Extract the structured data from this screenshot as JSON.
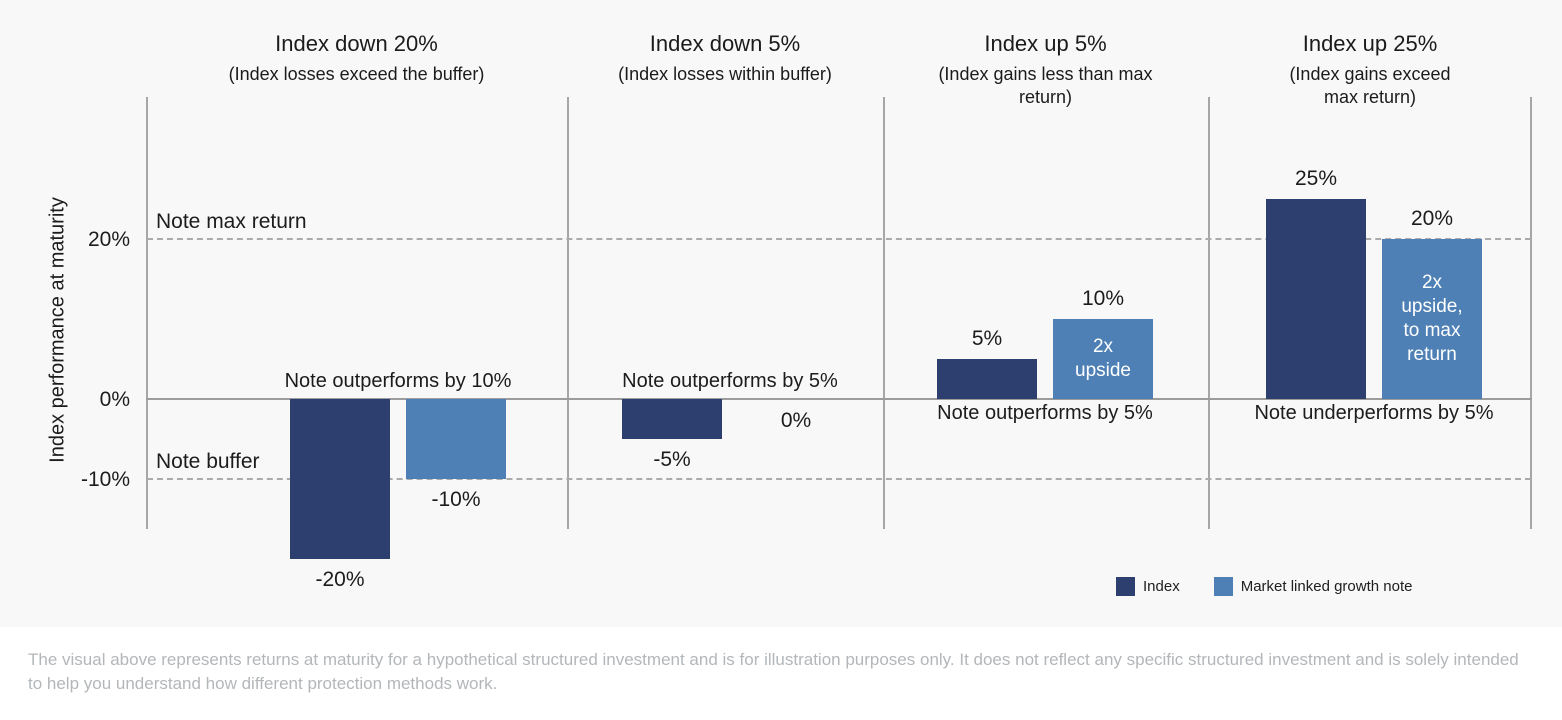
{
  "chart_data": {
    "type": "bar",
    "title": "",
    "y_axis": {
      "label": "Index performance at maturity",
      "ticks": [
        {
          "label": "20%",
          "value": 20
        },
        {
          "label": "0%",
          "value": 0
        },
        {
          "label": "-10%",
          "value": -10
        }
      ],
      "ylim": [
        -16,
        38
      ],
      "unit": "percent"
    },
    "reference_lines": [
      {
        "label": "Note max return",
        "value": 20,
        "style": "dashed"
      },
      {
        "label": "Note buffer",
        "value": -10,
        "style": "dashed"
      }
    ],
    "series_colors": {
      "index": "#2d3f6e",
      "note": "#4e80b5"
    },
    "legend": [
      {
        "label": "Index",
        "series": "index"
      },
      {
        "label": "Market linked growth note",
        "series": "note"
      }
    ],
    "legend_position": "bottom-right",
    "panels": [
      {
        "title": "Index down 20%",
        "subtitle": "(Index losses exceed the buffer)",
        "annotation": "Note outperforms by 10%",
        "index": {
          "value": -20,
          "label": "-20%"
        },
        "note": {
          "value": -10,
          "label": "-10%",
          "bar_lines": []
        }
      },
      {
        "title": "Index down 5%",
        "subtitle": "(Index losses within buffer)",
        "annotation": "Note outperforms by 5%",
        "index": {
          "value": -5,
          "label": "-5%"
        },
        "note": {
          "value": 0,
          "label": "0%",
          "bar_lines": []
        }
      },
      {
        "title": "Index up 5%",
        "subtitle": "(Index gains less than max return)",
        "annotation": "Note outperforms by 5%",
        "index": {
          "value": 5,
          "label": "5%"
        },
        "note": {
          "value": 10,
          "label": "10%",
          "bar_lines": [
            "2x",
            "upside"
          ]
        }
      },
      {
        "title": "Index up 25%",
        "subtitle": "(Index gains exceed max return)",
        "annotation": "Note underperforms by 5%",
        "index": {
          "value": 25,
          "label": "25%"
        },
        "note": {
          "value": 20,
          "label": "20%",
          "bar_lines": [
            "2x",
            "upside,",
            "to max",
            "return"
          ]
        }
      }
    ]
  },
  "footer": {
    "text": "The visual above represents returns at maturity for a hypothetical structured investment and is for illustration purposes only. It does not reflect any specific structured investment and is solely intended to help you understand how different protection methods work."
  }
}
